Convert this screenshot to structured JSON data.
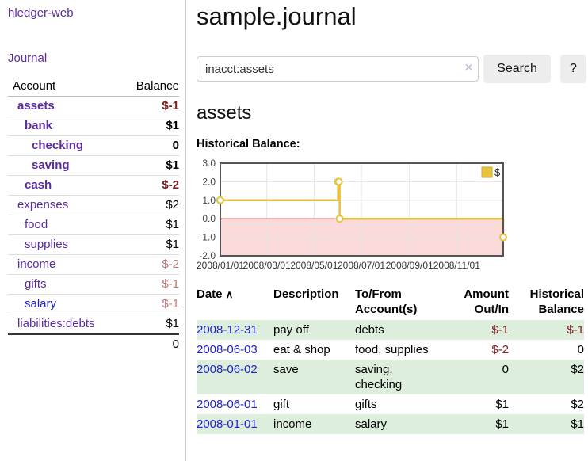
{
  "palette": {
    "link_purple": "#5a2ca0",
    "link_blue": "#2222cc",
    "negative_strong": "#7d1f1f",
    "negative_soft": "#bb7a7a",
    "row_stripe_green": "#ddeedd"
  },
  "sidebar": {
    "brand": "hledger-web",
    "nav": {
      "journal": "Journal"
    },
    "accounts_table": {
      "col_account": "Account",
      "col_balance": "Balance",
      "rows": [
        {
          "name": "assets",
          "balance": "$-1",
          "indent": 1,
          "bold": true,
          "balance_class": "neg-strong",
          "link_class": ""
        },
        {
          "name": "bank",
          "balance": "$1",
          "indent": 2,
          "bold": true,
          "balance_class": "",
          "link_class": ""
        },
        {
          "name": "checking",
          "balance": "0",
          "indent": 3,
          "bold": true,
          "balance_class": "",
          "link_class": ""
        },
        {
          "name": "saving",
          "balance": "$1",
          "indent": 3,
          "bold": true,
          "balance_class": "",
          "link_class": ""
        },
        {
          "name": "cash",
          "balance": "$-2",
          "indent": 2,
          "bold": true,
          "balance_class": "neg-strong",
          "link_class": ""
        },
        {
          "name": "expenses",
          "balance": "$2",
          "indent": 1,
          "bold": false,
          "balance_class": "",
          "link_class": ""
        },
        {
          "name": "food",
          "balance": "$1",
          "indent": 2,
          "bold": false,
          "balance_class": "",
          "link_class": ""
        },
        {
          "name": "supplies",
          "balance": "$1",
          "indent": 2,
          "bold": false,
          "balance_class": "",
          "link_class": ""
        },
        {
          "name": "income",
          "balance": "$-2",
          "indent": 1,
          "bold": false,
          "balance_class": "neg-soft",
          "link_class": ""
        },
        {
          "name": "gifts",
          "balance": "$-1",
          "indent": 2,
          "bold": false,
          "balance_class": "neg-soft",
          "link_class": ""
        },
        {
          "name": "salary",
          "balance": "$-1",
          "indent": 2,
          "bold": false,
          "balance_class": "neg-soft",
          "link_class": "blue"
        },
        {
          "name": "liabilities:debts",
          "balance": "$1",
          "indent": 1,
          "bold": false,
          "balance_class": "",
          "link_class": ""
        }
      ],
      "total": "0"
    }
  },
  "main": {
    "title": "sample.journal",
    "search": {
      "value": "inacct:assets",
      "clear_icon": "×",
      "search_button": "Search",
      "help_button": "?"
    },
    "account_heading": "assets",
    "chart_heading": "Historical Balance:"
  },
  "chart_data": {
    "type": "line",
    "style": "step-after",
    "title": "Historical Balance",
    "legend": [
      {
        "label": "$",
        "color": "#e7c23e"
      }
    ],
    "legend_position": "top-right",
    "x_range": [
      "2008-01-01",
      "2008-12-31"
    ],
    "ylim": [
      -2,
      3
    ],
    "yticks": [
      {
        "v": 3,
        "label": "3.0"
      },
      {
        "v": 2,
        "label": "2.0"
      },
      {
        "v": 1,
        "label": "1.0"
      },
      {
        "v": 0,
        "label": "0.0"
      },
      {
        "v": -1,
        "label": "-1.0"
      },
      {
        "v": -2,
        "label": "-2.0"
      }
    ],
    "xticks": [
      {
        "d": "2008-01-01",
        "label": "2008/01/01"
      },
      {
        "d": "2008-03-01",
        "label": "2008/03/01"
      },
      {
        "d": "2008-05-01",
        "label": "2008/05/01"
      },
      {
        "d": "2008-07-01",
        "label": "2008/07/01"
      },
      {
        "d": "2008-09-01",
        "label": "2008/09/01"
      },
      {
        "d": "2008-11-01",
        "label": "2008/11/01"
      }
    ],
    "series": [
      {
        "name": "$",
        "points": [
          {
            "d": "2008-01-01",
            "v": 1
          },
          {
            "d": "2008-06-01",
            "v": 2
          },
          {
            "d": "2008-06-02",
            "v": 2
          },
          {
            "d": "2008-06-03",
            "v": 0
          },
          {
            "d": "2008-12-31",
            "v": -1
          }
        ]
      }
    ],
    "colors": {
      "line": "#e7c23e",
      "marker_fill": "#ffffff",
      "negative_fill": "#fbdada",
      "zero_line": "#8b0000",
      "grid": "#e4e4e4",
      "border": "#555555",
      "tick_text": "#444444"
    }
  },
  "register": {
    "headers": {
      "date": "Date",
      "sort_indicator": "∧",
      "description": "Description",
      "accounts_line1": "To/From",
      "accounts_line2": "Account(s)",
      "amount_line1": "Amount",
      "amount_line2": "Out/In",
      "balance_line1": "Historical",
      "balance_line2": "Balance"
    },
    "rows": [
      {
        "date": "2008-12-31",
        "description": "pay off",
        "accounts": "debts",
        "amount": "$-1",
        "amount_class": "neg",
        "balance": "$-1",
        "balance_class": "neg"
      },
      {
        "date": "2008-06-03",
        "description": "eat & shop",
        "accounts": "food, supplies",
        "amount": "$-2",
        "amount_class": "neg",
        "balance": "0",
        "balance_class": ""
      },
      {
        "date": "2008-06-02",
        "description": "save",
        "accounts": "saving, checking",
        "amount": "0",
        "amount_class": "",
        "balance": "$2",
        "balance_class": ""
      },
      {
        "date": "2008-06-01",
        "description": "gift",
        "accounts": "gifts",
        "amount": "$1",
        "amount_class": "",
        "balance": "$2",
        "balance_class": ""
      },
      {
        "date": "2008-01-01",
        "description": "income",
        "accounts": "salary",
        "amount": "$1",
        "amount_class": "",
        "balance": "$1",
        "balance_class": ""
      }
    ]
  }
}
